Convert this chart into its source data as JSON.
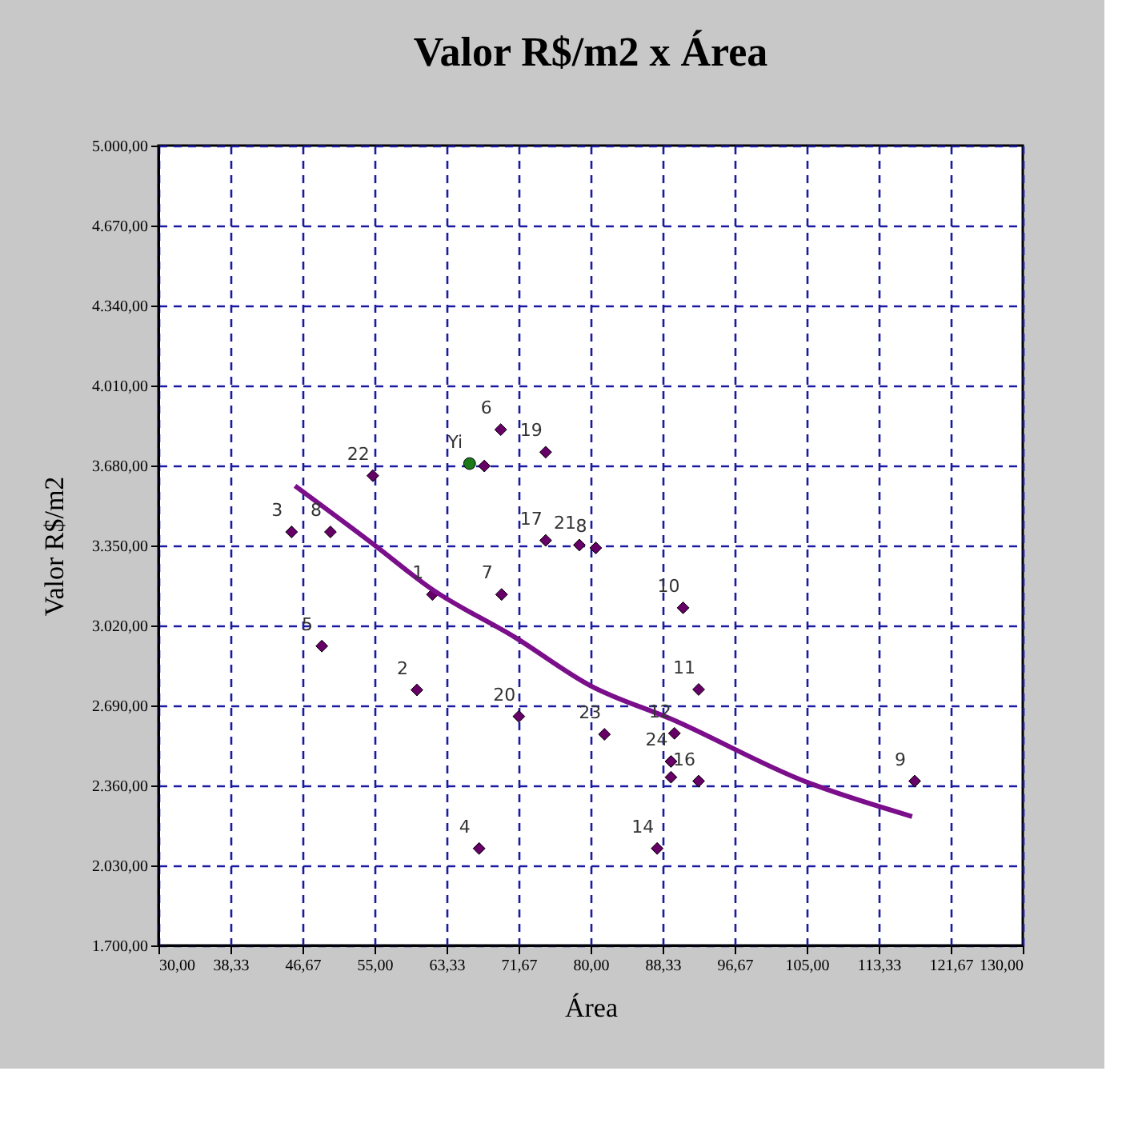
{
  "chart_data": {
    "type": "scatter",
    "title": "Valor R$/m2 x Área",
    "xlabel": "Área",
    "ylabel": "Valor R$/m2",
    "xlim": [
      30,
      130
    ],
    "ylim": [
      1700,
      5000
    ],
    "xticks": [
      {
        "value": 30,
        "label": "30,00"
      },
      {
        "value": 38.333,
        "label": "38,33"
      },
      {
        "value": 46.667,
        "label": "46,67"
      },
      {
        "value": 55,
        "label": "55,00"
      },
      {
        "value": 63.333,
        "label": "63,33"
      },
      {
        "value": 71.667,
        "label": "71,67"
      },
      {
        "value": 80,
        "label": "80,00"
      },
      {
        "value": 88.333,
        "label": "88,33"
      },
      {
        "value": 96.667,
        "label": "96,67"
      },
      {
        "value": 105,
        "label": "105,00"
      },
      {
        "value": 113.333,
        "label": "113,33"
      },
      {
        "value": 121.667,
        "label": "121,67"
      },
      {
        "value": 130,
        "label": "130,00"
      }
    ],
    "yticks": [
      {
        "value": 1700,
        "label": "1.700,00"
      },
      {
        "value": 2030,
        "label": "2.030,00"
      },
      {
        "value": 2360,
        "label": "2.360,00"
      },
      {
        "value": 2690,
        "label": "2.690,00"
      },
      {
        "value": 3020,
        "label": "3.020,00"
      },
      {
        "value": 3350,
        "label": "3.350,00"
      },
      {
        "value": 3680,
        "label": "3.680,00"
      },
      {
        "value": 4010,
        "label": "4.010,00"
      },
      {
        "value": 4340,
        "label": "4.340,00"
      },
      {
        "value": 4670,
        "label": "4.670,00"
      },
      {
        "value": 5000,
        "label": "5.000,00"
      }
    ],
    "grid": true,
    "series": [
      {
        "type": "scatter",
        "color": "#660066",
        "marker": "diamond",
        "x": [
          61.7,
          59.9,
          45.4,
          49.9,
          54.8,
          48.9,
          67.7,
          69.6,
          74.8,
          74.8,
          78.7,
          80.6,
          69.7,
          90.7,
          92.5,
          71.7,
          81.6,
          89.7,
          89.3,
          89.3,
          92.5,
          117.5,
          87.7,
          67.1
        ],
        "values": [
          3148,
          2754,
          3406,
          3406,
          3638,
          2935,
          3678,
          3828,
          3735,
          3371,
          3352,
          3340,
          3148,
          3093,
          2756,
          2645,
          2571,
          2575,
          2459,
          2394,
          2378,
          2378,
          2100,
          2100
        ]
      },
      {
        "type": "scatter",
        "color": "#1a7a1a",
        "marker": "circle",
        "x": [
          66.0
        ],
        "values": [
          3688
        ]
      },
      {
        "type": "line",
        "color": "#7b0f8b",
        "line_style": "solid",
        "marker": "none",
        "x": [
          45.8,
          54.8,
          61.5,
          71.3,
          79.9,
          89.4,
          104.7,
          117.2
        ],
        "values": [
          3596,
          3357,
          3173,
          2970,
          2773,
          2633,
          2378,
          2232
        ]
      }
    ],
    "annotations": [
      {
        "text": "1",
        "x": 61.7,
        "y": 3148
      },
      {
        "text": "2",
        "x": 59.9,
        "y": 2754
      },
      {
        "text": "3",
        "x": 45.4,
        "y": 3406
      },
      {
        "text": "8",
        "x": 49.9,
        "y": 3406
      },
      {
        "text": "22",
        "x": 54.8,
        "y": 3638
      },
      {
        "text": "5",
        "x": 48.9,
        "y": 2935
      },
      {
        "text": "Yi",
        "x": 66.0,
        "y": 3688
      },
      {
        "text": "6",
        "x": 69.6,
        "y": 3828
      },
      {
        "text": "19",
        "x": 74.8,
        "y": 3735
      },
      {
        "text": "17",
        "x": 74.8,
        "y": 3371
      },
      {
        "text": "21",
        "x": 78.7,
        "y": 3352
      },
      {
        "text": "8",
        "x": 80.6,
        "y": 3340
      },
      {
        "text": "7",
        "x": 69.7,
        "y": 3148
      },
      {
        "text": "10",
        "x": 90.7,
        "y": 3093
      },
      {
        "text": "11",
        "x": 92.5,
        "y": 2756
      },
      {
        "text": "20",
        "x": 71.7,
        "y": 2645
      },
      {
        "text": "23",
        "x": 81.6,
        "y": 2571
      },
      {
        "text": "12",
        "x": 89.7,
        "y": 2575
      },
      {
        "text": "24",
        "x": 89.3,
        "y": 2459
      },
      {
        "text": "16",
        "x": 92.5,
        "y": 2378
      },
      {
        "text": "9",
        "x": 117.5,
        "y": 2378
      },
      {
        "text": "14",
        "x": 87.7,
        "y": 2100
      },
      {
        "text": "4",
        "x": 67.1,
        "y": 2100
      }
    ]
  }
}
